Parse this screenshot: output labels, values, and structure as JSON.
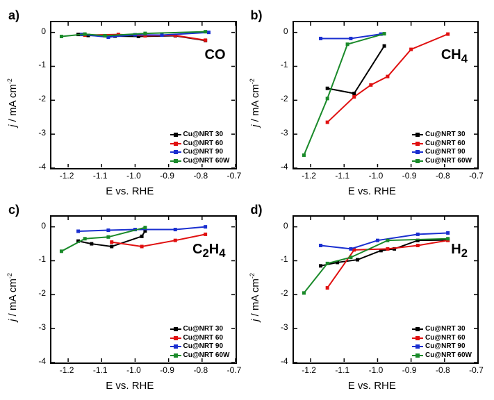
{
  "xlim": [
    -1.25,
    -0.7
  ],
  "ylim": [
    -4,
    0.3
  ],
  "xticks": [
    -1.2,
    -1.1,
    -1.0,
    -0.9,
    -0.8,
    -0.7
  ],
  "yticks": [
    0,
    -1,
    -2,
    -3,
    -4
  ],
  "ylabel": "j / mA cm⁻²",
  "xlabel": "E vs. RHE",
  "legend_items": [
    {
      "label": "Cu@NRT 30",
      "color": "#000000"
    },
    {
      "label": "Cu@NRT 60",
      "color": "#e01010"
    },
    {
      "label": "Cu@NRT 90",
      "color": "#1a2fd0"
    },
    {
      "label": "Cu@NRT 60W",
      "color": "#1a8a2a"
    }
  ],
  "panels": [
    {
      "key": "a",
      "label": "a)",
      "compound": "CO",
      "series": [
        {
          "color": "#000000",
          "pts": [
            [
              -1.17,
              -0.06
            ],
            [
              -1.14,
              -0.09
            ],
            [
              -1.06,
              -0.11
            ],
            [
              -0.99,
              -0.12
            ],
            [
              -0.88,
              -0.1
            ],
            [
              -0.79,
              -0.24
            ]
          ]
        },
        {
          "color": "#e01010",
          "pts": [
            [
              -1.15,
              -0.08
            ],
            [
              -1.05,
              -0.06
            ],
            [
              -0.97,
              -0.1
            ],
            [
              -0.88,
              -0.09
            ],
            [
              -0.79,
              -0.23
            ]
          ]
        },
        {
          "color": "#1a2fd0",
          "pts": [
            [
              -1.16,
              -0.06
            ],
            [
              -1.08,
              -0.14
            ],
            [
              -1.0,
              -0.07
            ],
            [
              -0.92,
              -0.08
            ],
            [
              -0.78,
              0.0
            ]
          ]
        },
        {
          "color": "#1a8a2a",
          "pts": [
            [
              -1.22,
              -0.12
            ],
            [
              -1.15,
              -0.05
            ],
            [
              -1.09,
              -0.1
            ],
            [
              -0.97,
              -0.03
            ],
            [
              -0.79,
              0.02
            ]
          ]
        }
      ]
    },
    {
      "key": "b",
      "label": "b)",
      "compound": "CH₄",
      "series": [
        {
          "color": "#000000",
          "pts": [
            [
              -1.15,
              -1.65
            ],
            [
              -1.07,
              -1.8
            ],
            [
              -0.98,
              -0.4
            ]
          ]
        },
        {
          "color": "#e01010",
          "pts": [
            [
              -1.15,
              -2.65
            ],
            [
              -1.07,
              -1.9
            ],
            [
              -1.02,
              -1.55
            ],
            [
              -0.97,
              -1.3
            ],
            [
              -0.9,
              -0.5
            ],
            [
              -0.79,
              -0.05
            ]
          ]
        },
        {
          "color": "#1a2fd0",
          "pts": [
            [
              -1.17,
              -0.18
            ],
            [
              -1.08,
              -0.18
            ],
            [
              -0.99,
              -0.05
            ]
          ]
        },
        {
          "color": "#1a8a2a",
          "pts": [
            [
              -1.22,
              -3.62
            ],
            [
              -1.15,
              -1.95
            ],
            [
              -1.09,
              -0.35
            ],
            [
              -0.98,
              -0.04
            ]
          ]
        }
      ]
    },
    {
      "key": "c",
      "label": "c)",
      "compound": "C₂H₄",
      "series": [
        {
          "color": "#000000",
          "pts": [
            [
              -1.17,
              -0.42
            ],
            [
              -1.13,
              -0.5
            ],
            [
              -1.07,
              -0.58
            ],
            [
              -0.98,
              -0.28
            ],
            [
              -0.97,
              -0.12
            ]
          ]
        },
        {
          "color": "#e01010",
          "pts": [
            [
              -1.07,
              -0.45
            ],
            [
              -0.98,
              -0.58
            ],
            [
              -0.88,
              -0.4
            ],
            [
              -0.79,
              -0.22
            ]
          ]
        },
        {
          "color": "#1a2fd0",
          "pts": [
            [
              -1.17,
              -0.13
            ],
            [
              -1.08,
              -0.1
            ],
            [
              -1.0,
              -0.08
            ],
            [
              -0.88,
              -0.08
            ],
            [
              -0.79,
              0.0
            ]
          ]
        },
        {
          "color": "#1a8a2a",
          "pts": [
            [
              -1.22,
              -0.72
            ],
            [
              -1.15,
              -0.35
            ],
            [
              -1.08,
              -0.3
            ],
            [
              -0.97,
              -0.02
            ]
          ]
        }
      ]
    },
    {
      "key": "d",
      "label": "d)",
      "compound": "H₂",
      "series": [
        {
          "color": "#000000",
          "pts": [
            [
              -1.17,
              -1.15
            ],
            [
              -1.12,
              -1.05
            ],
            [
              -1.06,
              -0.97
            ],
            [
              -0.99,
              -0.7
            ],
            [
              -0.95,
              -0.65
            ],
            [
              -0.88,
              -0.4
            ],
            [
              -0.79,
              -0.39
            ]
          ]
        },
        {
          "color": "#e01010",
          "pts": [
            [
              -1.15,
              -1.8
            ],
            [
              -1.07,
              -0.68
            ],
            [
              -0.97,
              -0.65
            ],
            [
              -0.88,
              -0.55
            ],
            [
              -0.79,
              -0.4
            ]
          ]
        },
        {
          "color": "#1a2fd0",
          "pts": [
            [
              -1.17,
              -0.55
            ],
            [
              -1.08,
              -0.65
            ],
            [
              -1.0,
              -0.4
            ],
            [
              -0.88,
              -0.22
            ],
            [
              -0.79,
              -0.18
            ]
          ]
        },
        {
          "color": "#1a8a2a",
          "pts": [
            [
              -1.22,
              -1.95
            ],
            [
              -1.15,
              -1.08
            ],
            [
              -1.08,
              -0.9
            ],
            [
              -0.97,
              -0.4
            ],
            [
              -0.79,
              -0.35
            ]
          ]
        }
      ]
    }
  ],
  "tick_fontsize": 12,
  "label_fontsize": 15,
  "line_width": 2,
  "marker_size": 5
}
